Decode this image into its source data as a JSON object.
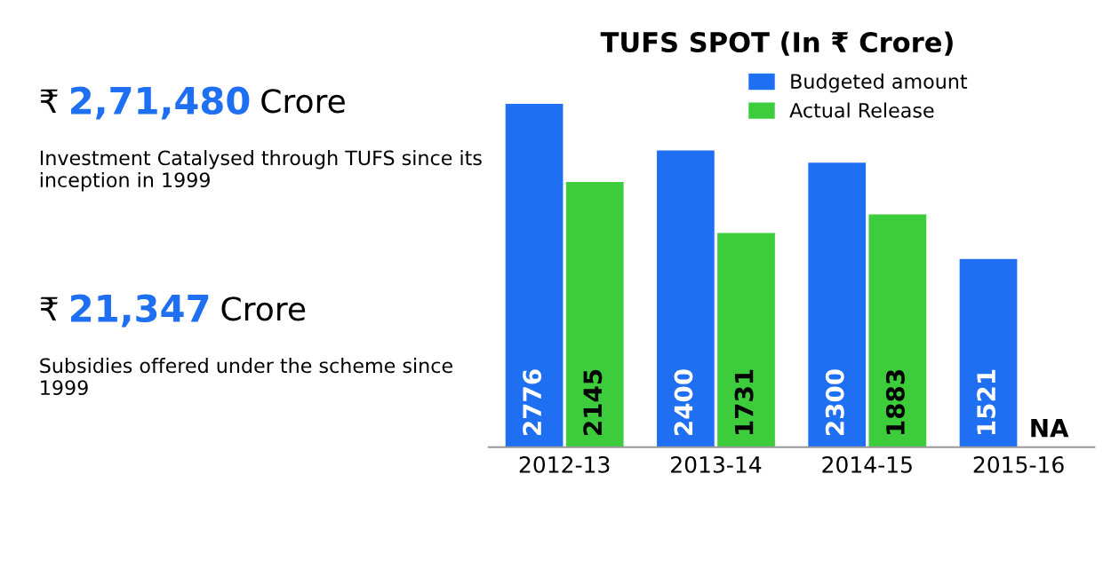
{
  "chart_data": {
    "type": "bar",
    "title": "TUFS SPOT (In ₹ Crore)",
    "categories": [
      "2012-13",
      "2013-14",
      "2014-15",
      "2015-16"
    ],
    "series": [
      {
        "name": "Budgeted amount",
        "color": "#1f6ff2",
        "values": [
          2776,
          2400,
          2300,
          1521
        ],
        "value_labels": [
          "2776",
          "2400",
          "2300",
          "1521"
        ]
      },
      {
        "name": "Actual Release",
        "color": "#3ccc3c",
        "values": [
          2145,
          1731,
          1883,
          null
        ],
        "value_labels": [
          "2145",
          "1731",
          "1883",
          "NA"
        ]
      }
    ],
    "legend": "top right",
    "grid": false,
    "annotations": [
      "₹ 2,71,480 Crore",
      "Investment Catalysed through TUFS since its inception in 1999",
      "₹ 21,347 Crore",
      "Subsidies offered under the scheme since 1999"
    ]
  }
}
